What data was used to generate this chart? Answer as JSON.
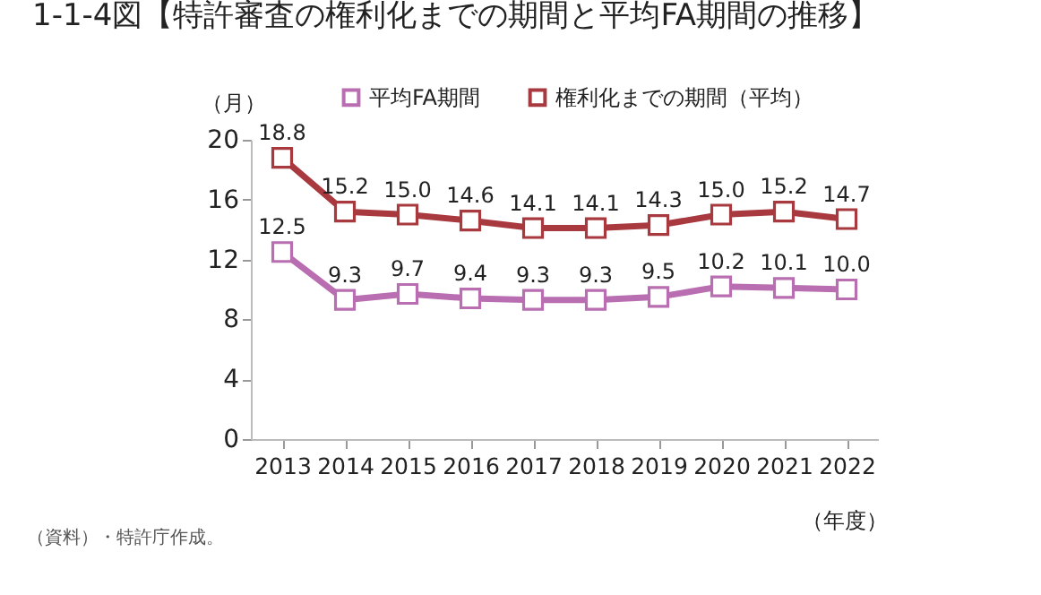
{
  "chart_data": {
    "type": "line",
    "title": "1-1-4図【特許審査の権利化までの期間と平均FA期間の推移】",
    "ylabel": "（月）",
    "xlabel": "（年度）",
    "categories": [
      "2013",
      "2014",
      "2015",
      "2016",
      "2017",
      "2018",
      "2019",
      "2020",
      "2021",
      "2022"
    ],
    "series": [
      {
        "name": "平均FA期間",
        "color": "#b86eb0",
        "values": [
          12.5,
          9.3,
          9.7,
          9.4,
          9.3,
          9.3,
          9.5,
          10.2,
          10.1,
          10.0
        ],
        "value_labels": [
          "12.5",
          "9.3",
          "9.7",
          "9.4",
          "9.3",
          "9.3",
          "9.5",
          "10.2",
          "10.1",
          "10.0"
        ]
      },
      {
        "name": "権利化までの期間（平均）",
        "color": "#a8393f",
        "values": [
          18.8,
          15.2,
          15.0,
          14.6,
          14.1,
          14.1,
          14.3,
          15.0,
          15.2,
          14.7
        ],
        "value_labels": [
          "18.8",
          "15.2",
          "15.0",
          "14.6",
          "14.1",
          "14.1",
          "14.3",
          "15.0",
          "15.2",
          "14.7"
        ]
      }
    ],
    "ylim": [
      0,
      20
    ],
    "yticks": [
      0,
      4,
      8,
      12,
      16,
      20
    ],
    "grid": false,
    "legend": "top",
    "marker": "square",
    "line_style": "solid",
    "data_labels": true,
    "annotations": [
      "（資料）・特許庁作成。"
    ]
  }
}
